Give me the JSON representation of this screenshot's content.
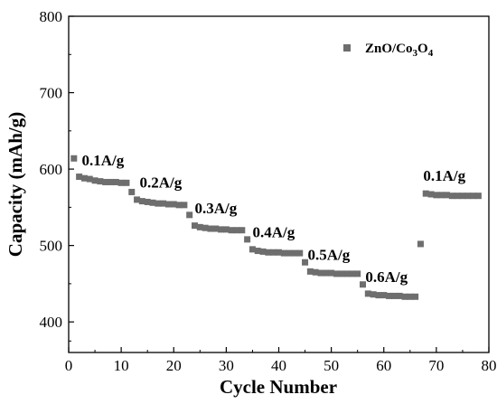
{
  "chart_data": {
    "type": "scatter",
    "xlabel": "Cycle Number",
    "ylabel": "Capacity (mAh/g)",
    "xlim": [
      0,
      80
    ],
    "ylim": [
      360,
      800
    ],
    "xticks": [
      0,
      10,
      20,
      30,
      40,
      50,
      60,
      70,
      80
    ],
    "yticks": [
      400,
      500,
      600,
      700,
      800
    ],
    "grid": false,
    "legend_position": "top-right",
    "marker_color": "#6e6e6e",
    "series": [
      {
        "name": "ZnO/Co3O4",
        "x": [
          1,
          2,
          3,
          4,
          5,
          6,
          7,
          8,
          9,
          10,
          11,
          12,
          13,
          14,
          15,
          16,
          17,
          18,
          19,
          20,
          21,
          22,
          23,
          24,
          25,
          26,
          27,
          28,
          29,
          30,
          31,
          32,
          33,
          34,
          35,
          36,
          37,
          38,
          39,
          40,
          41,
          42,
          43,
          44,
          45,
          46,
          47,
          48,
          49,
          50,
          51,
          52,
          53,
          54,
          55,
          56,
          57,
          58,
          59,
          60,
          61,
          62,
          63,
          64,
          65,
          66,
          67,
          68,
          69,
          70,
          71,
          72,
          73,
          74,
          75,
          76,
          77,
          78
        ],
        "y": [
          614,
          590,
          588,
          587,
          585,
          584,
          583,
          583,
          583,
          582,
          582,
          570,
          560,
          558,
          557,
          556,
          555,
          555,
          554,
          554,
          553,
          553,
          540,
          526,
          524,
          523,
          522,
          522,
          521,
          521,
          520,
          520,
          520,
          508,
          495,
          493,
          492,
          491,
          491,
          491,
          490,
          490,
          490,
          490,
          478,
          466,
          465,
          464,
          464,
          464,
          463,
          463,
          463,
          463,
          463,
          449,
          437,
          436,
          435,
          435,
          434,
          434,
          434,
          433,
          433,
          433,
          502,
          568,
          567,
          566,
          566,
          566,
          565,
          565,
          565,
          565,
          565,
          565
        ]
      }
    ],
    "annotations": [
      {
        "text": "0.1A/g",
        "x": 2.5,
        "y": 605
      },
      {
        "text": "0.2A/g",
        "x": 13.5,
        "y": 576
      },
      {
        "text": "0.3A/g",
        "x": 24.0,
        "y": 542
      },
      {
        "text": "0.4A/g",
        "x": 35.0,
        "y": 511
      },
      {
        "text": "0.5A/g",
        "x": 45.5,
        "y": 481
      },
      {
        "text": "0.6A/g",
        "x": 56.5,
        "y": 452
      },
      {
        "text": "0.1A/g",
        "x": 67.5,
        "y": 585
      }
    ]
  },
  "legend": {
    "entry_main": "ZnO/Co",
    "entry_sub1": "3",
    "entry_mid": "O",
    "entry_sub2": "4"
  }
}
